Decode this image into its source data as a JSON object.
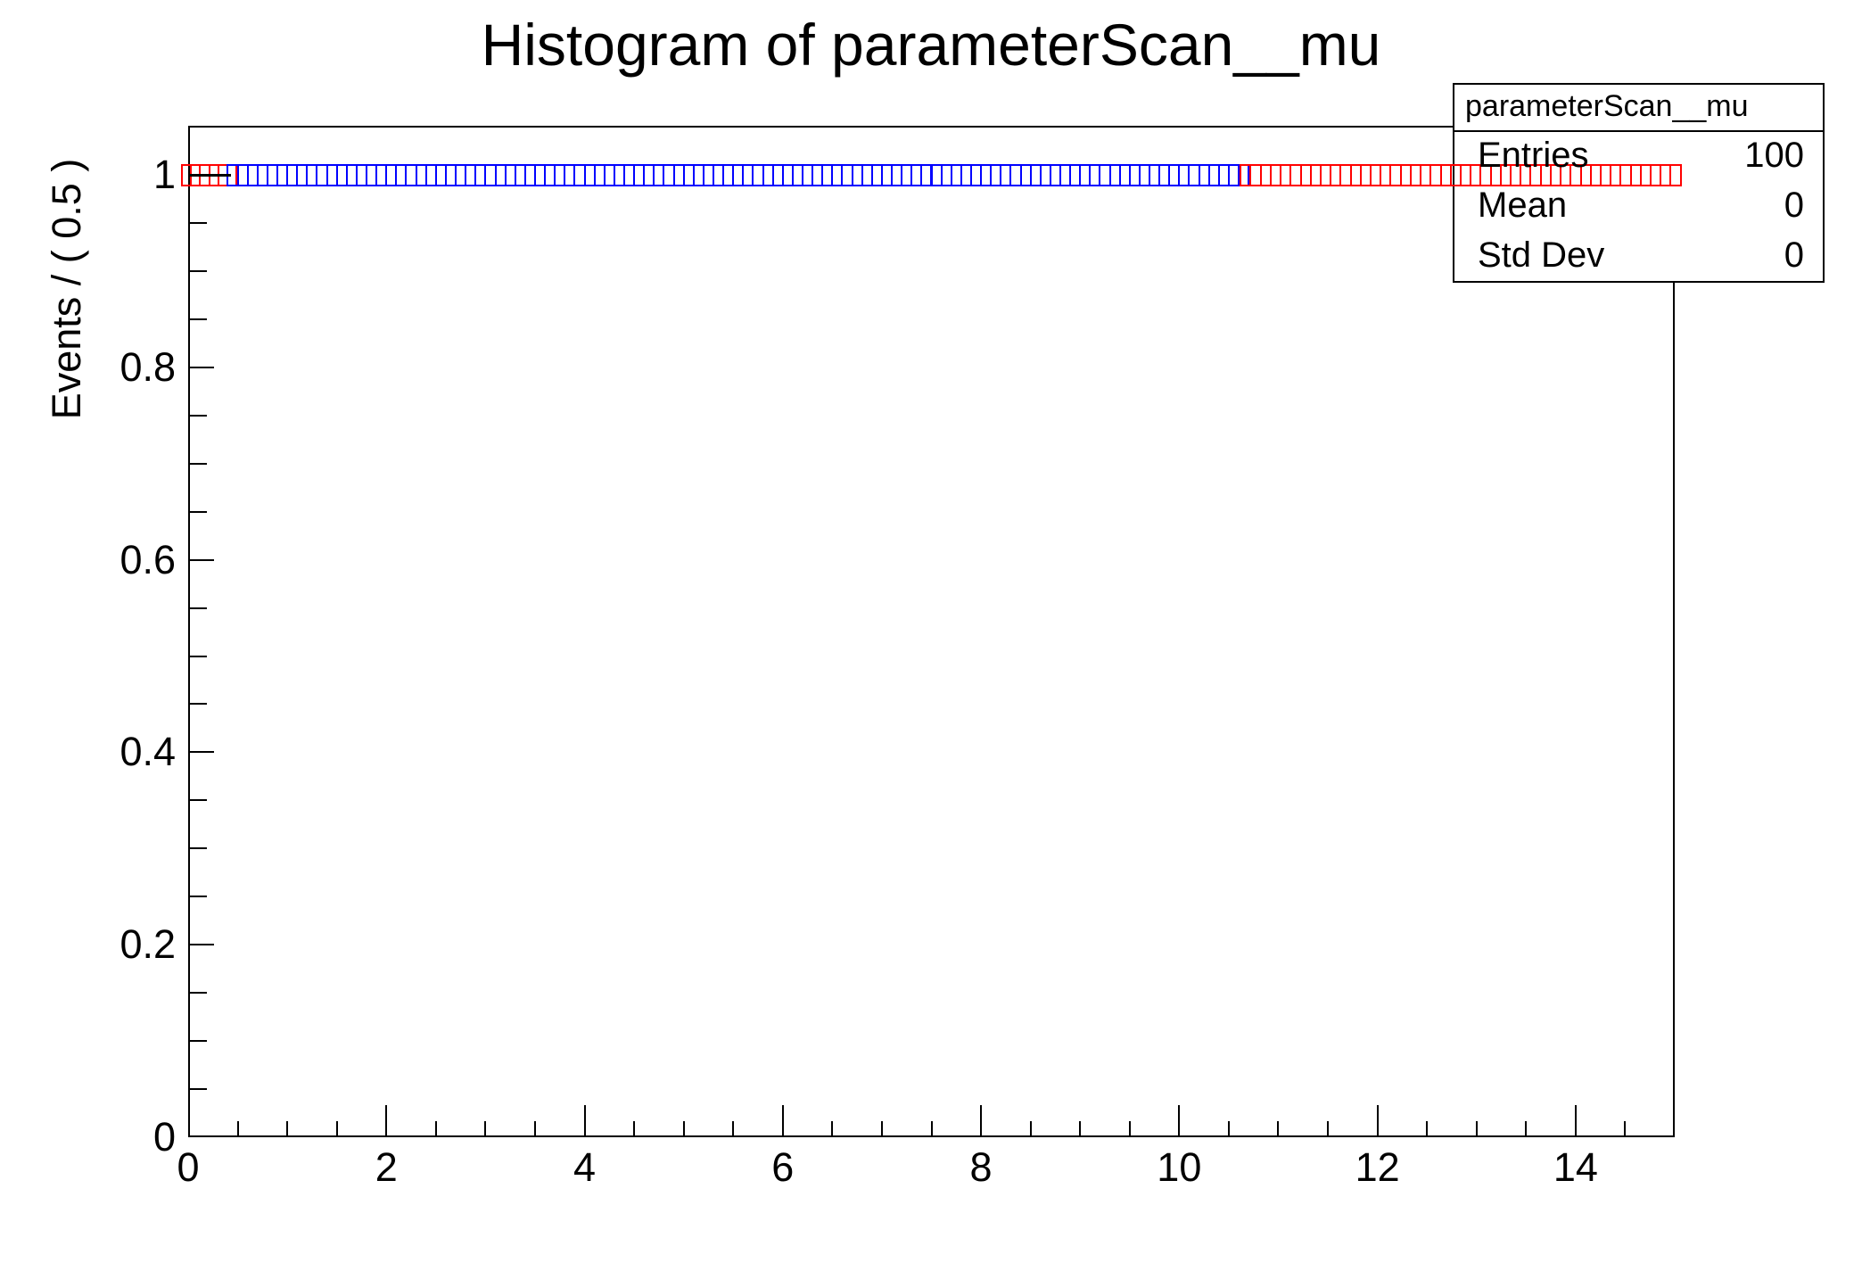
{
  "chart_data": {
    "type": "histogram",
    "title": "Histogram of parameterScan__mu",
    "xlabel": "",
    "ylabel": "Events / ( 0.5 )",
    "xlim": [
      0,
      15
    ],
    "ylim": [
      0,
      1.05
    ],
    "grid": false,
    "x_ticks": [
      {
        "v": 0,
        "label": "0"
      },
      {
        "v": 2,
        "label": "2"
      },
      {
        "v": 4,
        "label": "4"
      },
      {
        "v": 6,
        "label": "6"
      },
      {
        "v": 8,
        "label": "8"
      },
      {
        "v": 10,
        "label": "10"
      },
      {
        "v": 12,
        "label": "12"
      },
      {
        "v": 14,
        "label": "14"
      }
    ],
    "x_minor_step": 0.5,
    "y_ticks": [
      {
        "v": 0,
        "label": "0"
      },
      {
        "v": 0.2,
        "label": "0.2"
      },
      {
        "v": 0.4,
        "label": "0.4"
      },
      {
        "v": 0.6,
        "label": "0.6"
      },
      {
        "v": 0.8,
        "label": "0.8"
      },
      {
        "v": 1,
        "label": "1"
      }
    ],
    "y_minor_step": 0.05,
    "scan": {
      "y_value": 1.0,
      "point_step": 0.1,
      "colors": {
        "red": "#ff0000",
        "blue": "#0000ff"
      },
      "segments": [
        {
          "color": "red",
          "from": -0.065,
          "to": 0.49
        },
        {
          "color": "blue",
          "from": 0.4,
          "to": 10.7
        },
        {
          "color": "red",
          "from": 10.62,
          "to": 15.06
        }
      ],
      "error_bar": {
        "x_from": 0.0,
        "x_to": 0.43,
        "y": 1.0
      }
    },
    "stats_box": {
      "title": "parameterScan__mu",
      "rows": [
        {
          "label": "Entries",
          "value": "100"
        },
        {
          "label": "Mean",
          "value": "0"
        },
        {
          "label": "Std Dev",
          "value": "0"
        }
      ]
    }
  }
}
